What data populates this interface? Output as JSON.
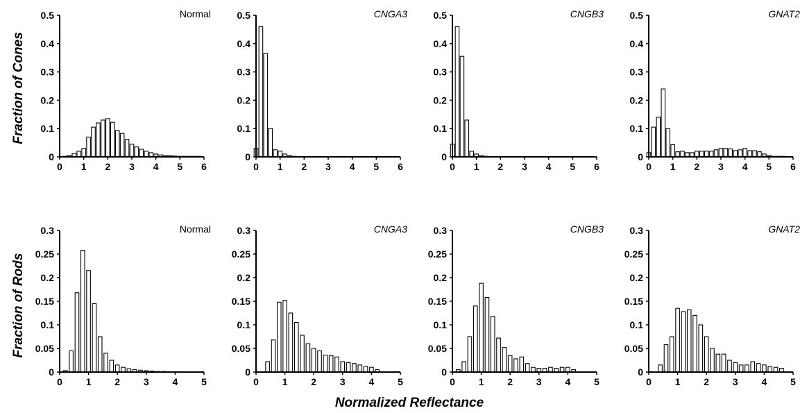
{
  "figure": {
    "row_labels": [
      "Fraction of Cones",
      "Fraction of Rods"
    ],
    "xlabel": "Normalized Reflectance"
  },
  "chart_data": [
    {
      "type": "bar",
      "title": "Normal",
      "title_style": "normal",
      "row": 0,
      "col": 0,
      "xlim": [
        0,
        6
      ],
      "ylim": [
        0,
        0.5
      ],
      "xticks": [
        "0",
        "1",
        "2",
        "3",
        "4",
        "5",
        "6"
      ],
      "yticks": [
        "0",
        "0.1",
        "0.2",
        "0.3",
        "0.4",
        "0.5"
      ],
      "x": [
        0.2,
        0.4,
        0.6,
        0.8,
        1.0,
        1.2,
        1.4,
        1.6,
        1.8,
        2.0,
        2.2,
        2.4,
        2.6,
        2.8,
        3.0,
        3.2,
        3.4,
        3.6,
        3.8,
        4.0,
        4.2,
        4.4,
        4.6,
        4.8,
        5.0,
        5.2,
        5.4,
        5.6,
        5.8
      ],
      "values": [
        0.002,
        0.005,
        0.012,
        0.02,
        0.03,
        0.07,
        0.105,
        0.12,
        0.13,
        0.135,
        0.122,
        0.093,
        0.083,
        0.062,
        0.045,
        0.035,
        0.027,
        0.02,
        0.015,
        0.01,
        0.007,
        0.005,
        0.004,
        0.003,
        0.002,
        0.002,
        0.001,
        0.001,
        0.001
      ]
    },
    {
      "type": "bar",
      "title": "CNGA3",
      "title_style": "italic",
      "row": 0,
      "col": 1,
      "xlim": [
        0,
        6
      ],
      "ylim": [
        0,
        0.5
      ],
      "xticks": [
        "0",
        "1",
        "2",
        "3",
        "4",
        "5",
        "6"
      ],
      "yticks": [
        "0",
        "0.1",
        "0.2",
        "0.3",
        "0.4",
        "0.5"
      ],
      "x": [
        0.0,
        0.2,
        0.4,
        0.6,
        0.8,
        1.0,
        1.2,
        1.4,
        1.6
      ],
      "values": [
        0.03,
        0.46,
        0.365,
        0.1,
        0.025,
        0.02,
        0.01,
        0.005,
        0.002
      ]
    },
    {
      "type": "bar",
      "title": "CNGB3",
      "title_style": "italic",
      "row": 0,
      "col": 2,
      "xlim": [
        0,
        6
      ],
      "ylim": [
        0,
        0.5
      ],
      "xticks": [
        "0",
        "1",
        "2",
        "3",
        "4",
        "5",
        "6"
      ],
      "yticks": [
        "0",
        "0.1",
        "0.2",
        "0.3",
        "0.4",
        "0.5"
      ],
      "x": [
        0.0,
        0.2,
        0.4,
        0.6,
        0.8,
        1.0,
        1.2,
        1.4
      ],
      "values": [
        0.045,
        0.46,
        0.355,
        0.13,
        0.02,
        0.01,
        0.005,
        0.002
      ]
    },
    {
      "type": "bar",
      "title": "GNAT2",
      "title_style": "italic",
      "row": 0,
      "col": 3,
      "xlim": [
        0,
        6
      ],
      "ylim": [
        0,
        0.5
      ],
      "xticks": [
        "0",
        "1",
        "2",
        "3",
        "4",
        "5",
        "6"
      ],
      "yticks": [
        "0",
        "0.1",
        "0.2",
        "0.3",
        "0.4",
        "0.5"
      ],
      "x": [
        0.0,
        0.2,
        0.4,
        0.6,
        0.8,
        1.0,
        1.2,
        1.4,
        1.6,
        1.8,
        2.0,
        2.2,
        2.4,
        2.6,
        2.8,
        3.0,
        3.2,
        3.4,
        3.6,
        3.8,
        4.0,
        4.2,
        4.4,
        4.6,
        4.8,
        5.0,
        5.2,
        5.4,
        5.6
      ],
      "values": [
        0.015,
        0.105,
        0.14,
        0.24,
        0.1,
        0.043,
        0.018,
        0.02,
        0.015,
        0.015,
        0.02,
        0.02,
        0.02,
        0.02,
        0.025,
        0.03,
        0.03,
        0.028,
        0.022,
        0.025,
        0.03,
        0.022,
        0.022,
        0.018,
        0.01,
        0.005,
        0.002,
        0.002,
        0.001
      ]
    },
    {
      "type": "bar",
      "title": "Normal",
      "title_style": "normal",
      "row": 1,
      "col": 0,
      "xlim": [
        0,
        5
      ],
      "ylim": [
        0,
        0.3
      ],
      "xticks": [
        "0",
        "1",
        "2",
        "3",
        "4",
        "5"
      ],
      "yticks": [
        "0",
        "0.05",
        "0.1",
        "0.15",
        "0.2",
        "0.25",
        "0.3"
      ],
      "x": [
        0.2,
        0.4,
        0.6,
        0.8,
        1.0,
        1.2,
        1.4,
        1.6,
        1.8,
        2.0,
        2.2,
        2.4,
        2.6,
        2.8,
        3.0,
        3.2,
        3.4,
        3.6
      ],
      "values": [
        0.003,
        0.045,
        0.168,
        0.258,
        0.215,
        0.145,
        0.075,
        0.04,
        0.025,
        0.015,
        0.01,
        0.007,
        0.005,
        0.004,
        0.003,
        0.002,
        0.001,
        0.001
      ]
    },
    {
      "type": "bar",
      "title": "CNGA3",
      "title_style": "italic",
      "row": 1,
      "col": 1,
      "xlim": [
        0,
        5
      ],
      "ylim": [
        0,
        0.3
      ],
      "xticks": [
        "0",
        "1",
        "2",
        "3",
        "4",
        "5"
      ],
      "yticks": [
        "0",
        "0.05",
        "0.1",
        "0.15",
        "0.2",
        "0.25",
        "0.3"
      ],
      "x": [
        0.4,
        0.6,
        0.8,
        1.0,
        1.2,
        1.4,
        1.6,
        1.8,
        2.0,
        2.2,
        2.4,
        2.6,
        2.8,
        3.0,
        3.2,
        3.4,
        3.6,
        3.8,
        4.0,
        4.2
      ],
      "values": [
        0.022,
        0.068,
        0.148,
        0.152,
        0.125,
        0.105,
        0.078,
        0.06,
        0.05,
        0.045,
        0.036,
        0.035,
        0.032,
        0.022,
        0.02,
        0.018,
        0.015,
        0.012,
        0.01,
        0.005
      ]
    },
    {
      "type": "bar",
      "title": "CNGB3",
      "title_style": "italic",
      "row": 1,
      "col": 2,
      "xlim": [
        0,
        5
      ],
      "ylim": [
        0,
        0.3
      ],
      "xticks": [
        "0",
        "1",
        "2",
        "3",
        "4",
        "5"
      ],
      "yticks": [
        "0",
        "0.05",
        "0.1",
        "0.15",
        "0.2",
        "0.25",
        "0.3"
      ],
      "x": [
        0.2,
        0.4,
        0.6,
        0.8,
        1.0,
        1.2,
        1.4,
        1.6,
        1.8,
        2.0,
        2.2,
        2.4,
        2.6,
        2.8,
        3.0,
        3.2,
        3.4,
        3.6,
        3.8,
        4.0,
        4.2
      ],
      "values": [
        0.005,
        0.022,
        0.075,
        0.14,
        0.188,
        0.158,
        0.118,
        0.072,
        0.052,
        0.035,
        0.028,
        0.032,
        0.018,
        0.01,
        0.008,
        0.008,
        0.01,
        0.008,
        0.01,
        0.01,
        0.005
      ]
    },
    {
      "type": "bar",
      "title": "GNAT2",
      "title_style": "italic",
      "row": 1,
      "col": 3,
      "xlim": [
        0,
        5
      ],
      "ylim": [
        0,
        0.3
      ],
      "xticks": [
        "0",
        "1",
        "2",
        "3",
        "4",
        "5"
      ],
      "yticks": [
        "0",
        "0.05",
        "0.1",
        "0.15",
        "0.2",
        "0.25",
        "0.3"
      ],
      "x": [
        0.4,
        0.6,
        0.8,
        1.0,
        1.2,
        1.4,
        1.6,
        1.8,
        2.0,
        2.2,
        2.4,
        2.6,
        2.8,
        3.0,
        3.2,
        3.4,
        3.6,
        3.8,
        4.0,
        4.2,
        4.4,
        4.6
      ],
      "values": [
        0.015,
        0.058,
        0.075,
        0.135,
        0.128,
        0.132,
        0.12,
        0.1,
        0.075,
        0.05,
        0.038,
        0.038,
        0.025,
        0.02,
        0.015,
        0.015,
        0.022,
        0.018,
        0.015,
        0.012,
        0.01,
        0.008
      ]
    }
  ]
}
